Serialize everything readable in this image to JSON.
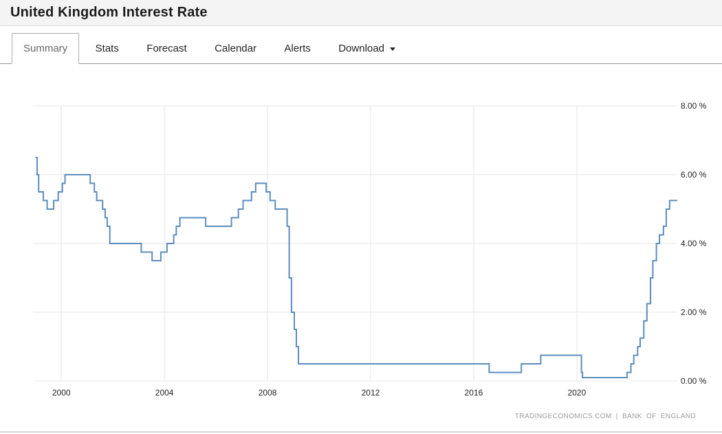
{
  "header": {
    "title": "United Kingdom Interest Rate"
  },
  "tabs": {
    "items": [
      {
        "label": "Summary",
        "active": true
      },
      {
        "label": "Stats",
        "active": false
      },
      {
        "label": "Forecast",
        "active": false
      },
      {
        "label": "Calendar",
        "active": false
      },
      {
        "label": "Alerts",
        "active": false
      },
      {
        "label": "Download",
        "active": false,
        "has_caret": true
      }
    ]
  },
  "chart": {
    "attribution": "TRADINGECONOMICS.COM | BANK OF ENGLAND"
  },
  "chart_data": {
    "type": "line",
    "step": true,
    "title": "United Kingdom Interest Rate",
    "unit": "%",
    "grid": true,
    "legend": false,
    "line_color": "#5b8cbe",
    "grid_color": "#e5e5e5",
    "label_color": "#222222",
    "xlim": [
      1998.9,
      2023.9
    ],
    "ylim": [
      0,
      8
    ],
    "x_ticks": [
      {
        "value": 2000,
        "label": "2000"
      },
      {
        "value": 2004,
        "label": "2004"
      },
      {
        "value": 2008,
        "label": "2008"
      },
      {
        "value": 2012,
        "label": "2012"
      },
      {
        "value": 2016,
        "label": "2016"
      },
      {
        "value": 2020,
        "label": "2020"
      }
    ],
    "y_ticks": [
      {
        "value": 0,
        "label": "0.00 %"
      },
      {
        "value": 2,
        "label": "2.00 %"
      },
      {
        "value": 4,
        "label": "4.00 %"
      },
      {
        "value": 6,
        "label": "6.00 %"
      },
      {
        "value": 8,
        "label": "8.00 %"
      }
    ],
    "series": [
      {
        "name": "United Kingdom Interest Rate",
        "points": [
          [
            1999.0,
            6.5
          ],
          [
            1999.06,
            6.0
          ],
          [
            1999.12,
            5.5
          ],
          [
            1999.3,
            5.25
          ],
          [
            1999.45,
            5.0
          ],
          [
            1999.7,
            5.25
          ],
          [
            1999.88,
            5.5
          ],
          [
            2000.04,
            5.75
          ],
          [
            2000.14,
            6.0
          ],
          [
            2001.12,
            5.75
          ],
          [
            2001.28,
            5.5
          ],
          [
            2001.37,
            5.25
          ],
          [
            2001.6,
            5.0
          ],
          [
            2001.7,
            4.75
          ],
          [
            2001.78,
            4.5
          ],
          [
            2001.88,
            4.0
          ],
          [
            2003.1,
            3.75
          ],
          [
            2003.52,
            3.5
          ],
          [
            2003.86,
            3.75
          ],
          [
            2004.1,
            4.0
          ],
          [
            2004.36,
            4.25
          ],
          [
            2004.46,
            4.5
          ],
          [
            2004.6,
            4.75
          ],
          [
            2005.6,
            4.5
          ],
          [
            2006.6,
            4.75
          ],
          [
            2006.87,
            5.0
          ],
          [
            2007.05,
            5.25
          ],
          [
            2007.38,
            5.5
          ],
          [
            2007.54,
            5.75
          ],
          [
            2007.95,
            5.5
          ],
          [
            2008.1,
            5.25
          ],
          [
            2008.3,
            5.0
          ],
          [
            2008.76,
            4.5
          ],
          [
            2008.84,
            3.0
          ],
          [
            2008.93,
            2.0
          ],
          [
            2009.04,
            1.5
          ],
          [
            2009.12,
            1.0
          ],
          [
            2009.2,
            0.5
          ],
          [
            2016.6,
            0.25
          ],
          [
            2017.85,
            0.5
          ],
          [
            2018.6,
            0.75
          ],
          [
            2020.18,
            0.25
          ],
          [
            2020.22,
            0.1
          ],
          [
            2021.95,
            0.25
          ],
          [
            2022.1,
            0.5
          ],
          [
            2022.21,
            0.75
          ],
          [
            2022.36,
            1.0
          ],
          [
            2022.46,
            1.25
          ],
          [
            2022.6,
            1.75
          ],
          [
            2022.72,
            2.25
          ],
          [
            2022.86,
            3.0
          ],
          [
            2022.95,
            3.5
          ],
          [
            2023.09,
            4.0
          ],
          [
            2023.21,
            4.25
          ],
          [
            2023.36,
            4.5
          ],
          [
            2023.47,
            5.0
          ],
          [
            2023.6,
            5.25
          ],
          [
            2023.9,
            5.25
          ]
        ]
      }
    ]
  }
}
